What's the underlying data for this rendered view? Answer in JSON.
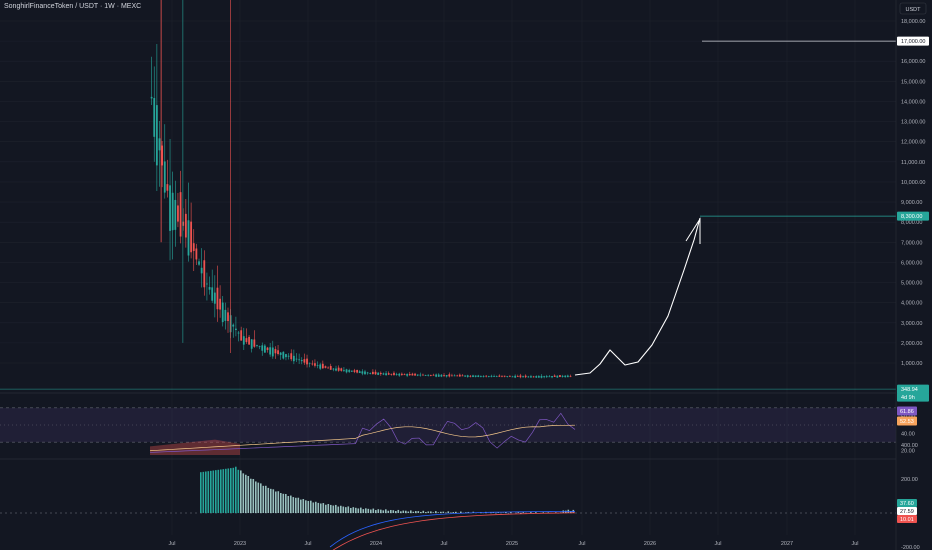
{
  "header": {
    "title": "SonghirlFinanceToken / USDT · 1W · MEXC",
    "currency": "USDT"
  },
  "chart_data": [
    {
      "type": "candlestick",
      "title": "SonghirlFinanceToken / USDT · 1W · MEXC",
      "y_ticks": [
        "18,000.00",
        "17,000.00",
        "16,000.00",
        "15,000.00",
        "14,000.00",
        "13,000.00",
        "12,000.00",
        "11,000.00",
        "10,000.00",
        "9,000.00",
        "8,000.00",
        "7,000.00",
        "6,000.00",
        "5,000.00",
        "4,000.00",
        "3,000.00",
        "2,000.00",
        "1,000.00"
      ],
      "ylim": [
        0,
        18500
      ],
      "x_ticks": [
        "Jul",
        "2023",
        "Jul",
        "2024",
        "Jul",
        "2025",
        "Jul",
        "2026",
        "Jul",
        "2027",
        "Jul"
      ],
      "price_labels": [
        {
          "text": "17,000.00",
          "value": 17000,
          "color": "#ffffff"
        },
        {
          "text": "8,300.00",
          "value": 8300,
          "color": "#26a69a"
        },
        {
          "text": "348.94",
          "value": 348.94,
          "color": "#26a69a"
        },
        {
          "text": "4d 9h",
          "value": null,
          "color": "#26a69a"
        }
      ],
      "horizontal_levels": [
        17000,
        8300,
        348.94
      ],
      "series_summary": {
        "ath_high": 18300,
        "start_price": 14200,
        "approx_closes": [
          14200,
          9000,
          7500,
          5000,
          3500,
          2200,
          1800,
          1500,
          1200,
          900,
          700,
          600,
          500,
          450,
          420,
          400,
          380,
          360,
          350,
          340,
          330,
          320,
          330,
          348.94
        ],
        "projection": [
          348.94,
          400,
          1000,
          1800,
          1200,
          1000,
          2500,
          5000,
          8300
        ]
      },
      "colors": {
        "up": "#26a69a",
        "down": "#ef5350",
        "projection": "#ffffff"
      }
    },
    {
      "type": "line",
      "title": "RSI",
      "y_ticks": [
        "80.00",
        "60.00",
        "40.00",
        "20.00"
      ],
      "ylim": [
        15,
        85
      ],
      "bands": [
        70,
        30
      ],
      "value_labels": [
        {
          "text": "61.86",
          "color": "#7e57c2"
        },
        {
          "text": "52.53",
          "color": "#f7a35c"
        }
      ]
    },
    {
      "type": "bar",
      "title": "MACD",
      "y_ticks": [
        "400.00",
        "200.00",
        "0.00",
        "-200.00"
      ],
      "ylim": [
        -260,
        440
      ],
      "value_labels": [
        {
          "text": "37.60",
          "color": "#26a69a"
        },
        {
          "text": "27.59",
          "color": "#ffffff"
        },
        {
          "text": "10.01",
          "color": "#ef5350"
        }
      ]
    }
  ]
}
